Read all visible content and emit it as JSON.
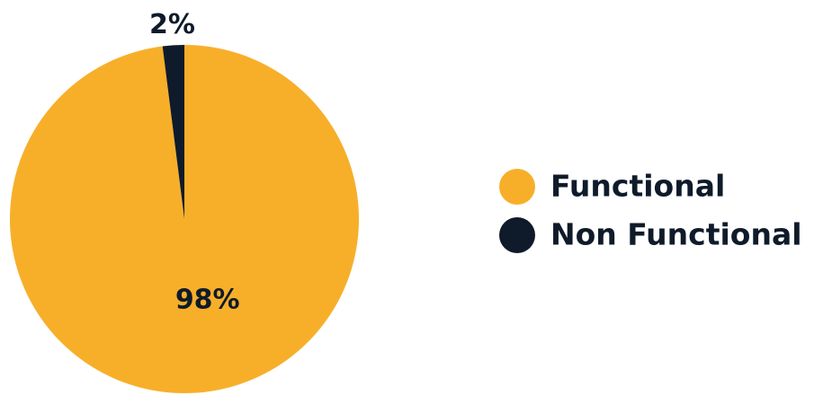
{
  "chart_data": {
    "type": "pie",
    "categories": [
      "Functional",
      "Non Functional"
    ],
    "values": [
      98,
      2
    ],
    "value_labels": [
      "98%",
      "2%"
    ],
    "colors": [
      "#f7af2a",
      "#0f1b2a"
    ],
    "legend": "right"
  }
}
